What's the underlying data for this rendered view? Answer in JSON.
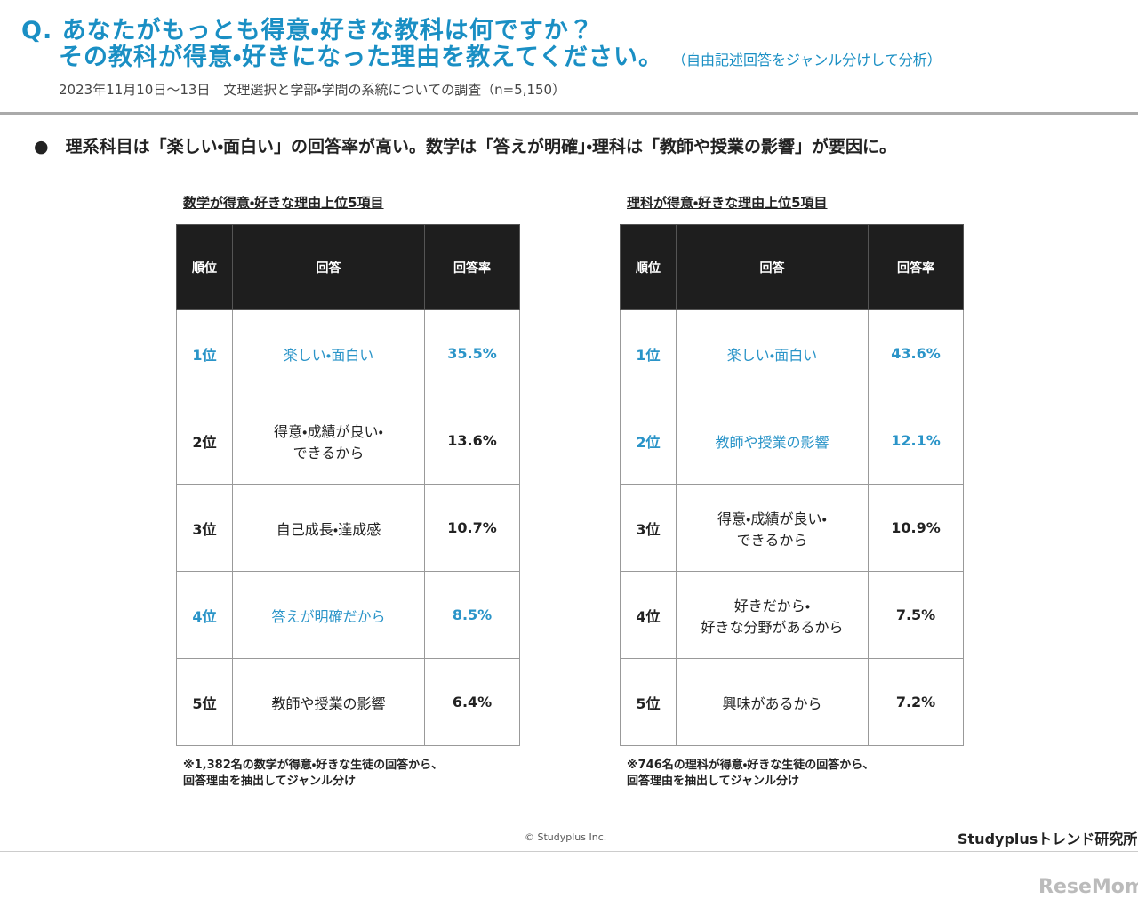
{
  "header": {
    "title_lines": [
      "Q. あなたがもっとも得意・好きな教科は何ですか？",
      "その教科が得意・好きになった理由を教えてください。"
    ],
    "title_note": "（自由記述回答をジャンル分けして分析）",
    "subtitle": "2023年11月10日～13日　文理選択と学部・学問の系統についての調査（n=5,150）"
  },
  "summary": "理系科目は「楽しい・面白い」の回答率が高い。数学は「答えが明確」・理科は「教師や授業の影響」が要因に。",
  "tables": [
    {
      "title": "数学が得意・好きな理由上位5項目",
      "columns": [
        "順位",
        "回答",
        "回答率"
      ],
      "rows": [
        {
          "cells": [
            "1位",
            "楽しい・面白い",
            "35.5%"
          ],
          "highlight": true
        },
        {
          "cells": [
            "2位",
            "得意・成績が良い・\nできるから",
            "13.6%"
          ],
          "highlight": false
        },
        {
          "cells": [
            "3位",
            "自己成長・達成感",
            "10.7%"
          ],
          "highlight": false
        },
        {
          "cells": [
            "4位",
            "答えが明確だから",
            "8.5%"
          ],
          "highlight": true
        },
        {
          "cells": [
            "5位",
            "教師や授業の影響",
            "6.4%"
          ],
          "highlight": false
        }
      ],
      "footnote": "※1,382名の数学が得意・好きな生徒の回答から、\n回答理由を抽出してジャンル分け"
    },
    {
      "title": "理科が得意・好きな理由上位5項目",
      "columns": [
        "順位",
        "回答",
        "回答率"
      ],
      "rows": [
        {
          "cells": [
            "1位",
            "楽しい・面白い",
            "43.6%"
          ],
          "highlight": true
        },
        {
          "cells": [
            "2位",
            "教師や授業の影響",
            "12.1%"
          ],
          "highlight": true
        },
        {
          "cells": [
            "3位",
            "得意・成績が良い・\nできるから",
            "10.9%"
          ],
          "highlight": false
        },
        {
          "cells": [
            "4位",
            "好きだから・\n好きな分野があるから",
            "7.5%"
          ],
          "highlight": false
        },
        {
          "cells": [
            "5位",
            "興味があるから",
            "7.2%"
          ],
          "highlight": false
        }
      ],
      "footnote": "※746名の理科が得意・好きな生徒の回答から、\n回答理由を抽出してジャンル分け"
    }
  ],
  "footer": {
    "copyright": "© Studyplus Inc.",
    "brand": "Studyplusトレンド研究所",
    "watermark": "ReseMom"
  }
}
